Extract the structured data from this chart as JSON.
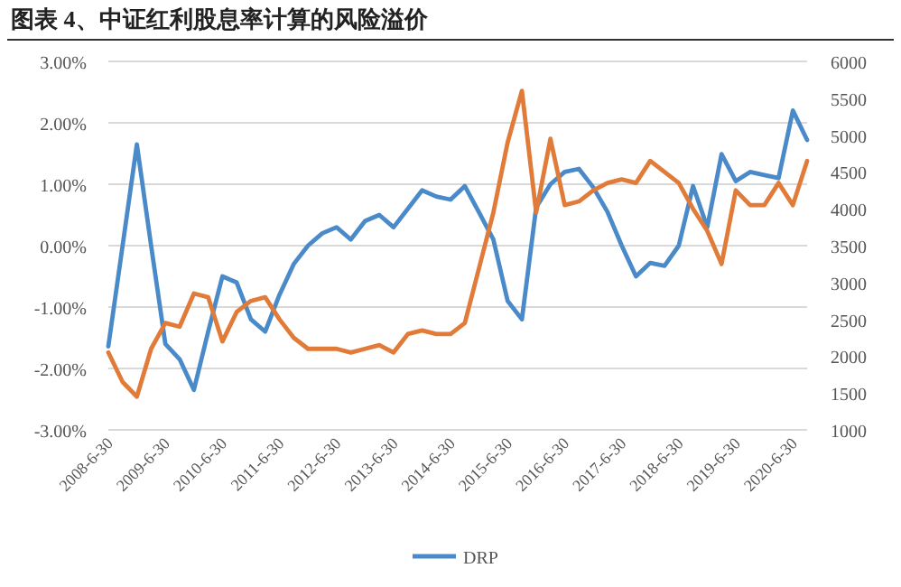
{
  "chart_data": {
    "type": "line",
    "title": "图表 4、中证红利股息率计算的风险溢价",
    "categories": [
      "2008-6-30",
      null,
      null,
      null,
      "2009-6-30",
      null,
      null,
      null,
      "2010-6-30",
      null,
      null,
      null,
      "2011-6-30",
      null,
      null,
      null,
      "2012-6-30",
      null,
      null,
      null,
      "2013-6-30",
      null,
      null,
      null,
      "2014-6-30",
      null,
      null,
      null,
      "2015-6-30",
      null,
      null,
      null,
      "2016-6-30",
      null,
      null,
      null,
      "2017-6-30",
      null,
      null,
      null,
      "2018-6-30",
      null,
      null,
      null,
      "2019-6-30",
      null,
      null,
      null,
      "2020-6-30",
      null
    ],
    "series": [
      {
        "name": "DRP",
        "color": "#4a8ac9",
        "values": [
          -1.64,
          0.0,
          1.65,
          0.0,
          -1.6,
          -1.85,
          -2.35,
          -1.4,
          -0.5,
          -0.6,
          -1.2,
          -1.4,
          -0.8,
          -0.3,
          0.0,
          0.2,
          0.3,
          0.1,
          0.4,
          0.5,
          0.3,
          0.6,
          0.9,
          0.8,
          0.75,
          0.97,
          0.54,
          0.1,
          -0.9,
          -1.2,
          0.62,
          1.0,
          1.2,
          1.25,
          0.95,
          0.55,
          0.0,
          -0.5,
          -0.28,
          -0.33,
          0.0,
          0.97,
          0.3,
          1.49,
          1.05,
          1.2,
          1.15,
          1.1,
          2.2,
          1.72
        ]
      },
      {
        "color": "#e07b39",
        "axis": "y2",
        "values": [
          2050,
          1650,
          1450,
          2100,
          2450,
          2400,
          2850,
          2800,
          2200,
          2600,
          2750,
          2800,
          2500,
          2250,
          2100,
          2100,
          2100,
          2050,
          2100,
          2150,
          2050,
          2300,
          2350,
          2300,
          2300,
          2450,
          3200,
          3950,
          4900,
          5600,
          3950,
          4950,
          4050,
          4100,
          4250,
          4350,
          4400,
          4350,
          4650,
          4500,
          4350,
          4000,
          3700,
          3250,
          4250,
          4050,
          4050,
          4350,
          4050,
          4650
        ]
      }
    ],
    "ylim": [
      -3,
      3
    ],
    "yticks": [
      {
        "value": -3,
        "label": "-3.00%"
      },
      {
        "value": -2,
        "label": "-2.00%"
      },
      {
        "value": -1,
        "label": "-1.00%"
      },
      {
        "value": 0,
        "label": "0.00%"
      },
      {
        "value": 1,
        "label": "1.00%"
      },
      {
        "value": 2,
        "label": "2.00%"
      },
      {
        "value": 3,
        "label": "3.00%"
      }
    ],
    "y2lim": [
      1000,
      6000
    ],
    "y2ticks": [
      1000,
      1500,
      2000,
      2500,
      3000,
      3500,
      4000,
      4500,
      5000,
      5500,
      6000
    ],
    "grid": "y",
    "legend": "bottom"
  }
}
